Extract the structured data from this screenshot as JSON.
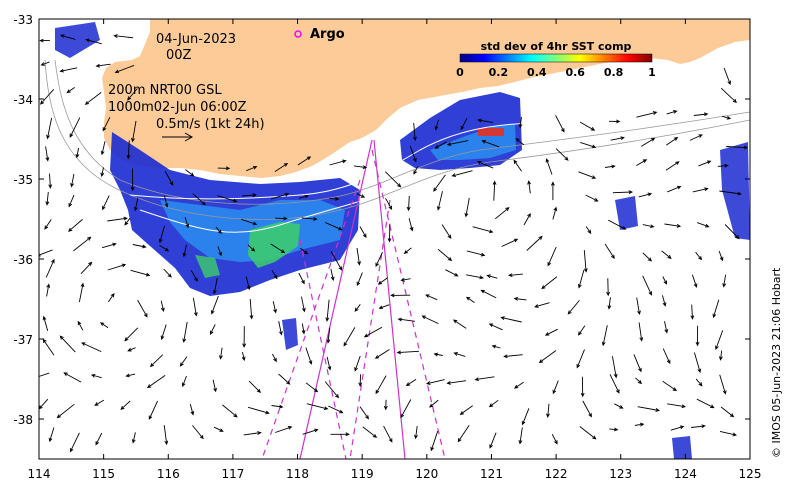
{
  "map": {
    "x_range": [
      114,
      125
    ],
    "y_range": [
      -38.5,
      -33
    ],
    "x_ticks": [
      "114",
      "115",
      "116",
      "117",
      "118",
      "119",
      "120",
      "121",
      "122",
      "123",
      "124",
      "125"
    ],
    "y_ticks": [
      "-33",
      "-34",
      "-35",
      "-36",
      "-37",
      "-38"
    ],
    "land_color": "#fccb98"
  },
  "annotations": {
    "date": "04-Jun-2023",
    "hour": "00Z",
    "line1": "200m  NRT00 GSL",
    "line2": "1000m02-Jun 06:00Z",
    "line3": "0.5m/s (1kt 24h)"
  },
  "legend": {
    "argo_label": "Argo",
    "argo_color": "#ff00ff"
  },
  "colorbar": {
    "title": "std dev of 4hr SST comp",
    "ticks": [
      "0",
      "0.2",
      "0.4",
      "0.6",
      "0.8",
      "1"
    ],
    "colors": [
      "#00007f",
      "#0000ff",
      "#007fff",
      "#00ffff",
      "#7fff7f",
      "#ffff00",
      "#ff7f00",
      "#ff0000",
      "#7f0000"
    ]
  },
  "credit": "© IMOS 05-Jun-2023 21:06 Hobart",
  "track_color": "#cc33cc"
}
